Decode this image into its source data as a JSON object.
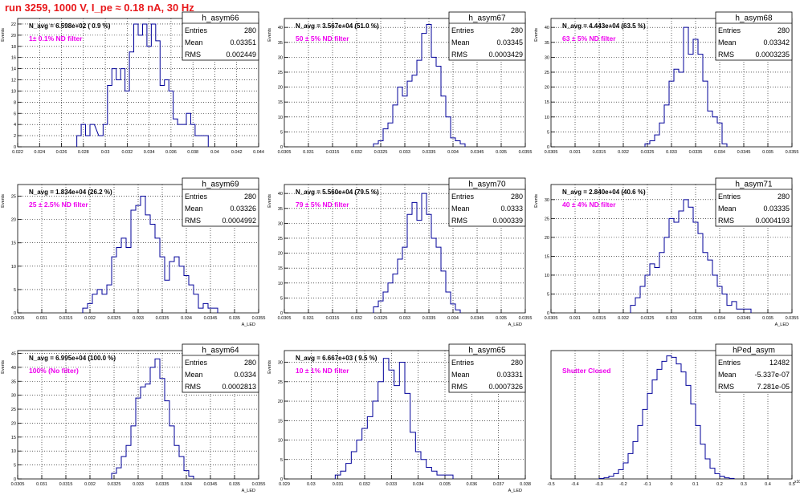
{
  "title": "run 3259,  1000 V, I_pe ≈ 0.18 nA,  30 Hz",
  "colors": {
    "title": "#e8191c",
    "filter_label": "#ee00ee",
    "histogram": "#000099",
    "grid": "#000000"
  },
  "chart_data": [
    {
      "type": "bar",
      "name": "h_asym66",
      "stats": {
        "entries": "280",
        "mean": "0.03351",
        "rms": "0.002449"
      },
      "navg": "N_avg = 6.598e+02 ( 0.9 %)",
      "filter": "1± 0.1% ND filter",
      "ylabel": "Events",
      "xlabel": "",
      "xlim": [
        0.022,
        0.044
      ],
      "ylim": [
        0,
        23
      ],
      "xticks": [
        "0.022",
        "0.024",
        "0.026",
        "0.028",
        "0.03",
        "0.032",
        "0.034",
        "0.036",
        "0.038",
        "0.04",
        "0.042",
        "0.044"
      ],
      "xtick_values": [
        0.022,
        0.024,
        0.026,
        0.028,
        0.03,
        0.032,
        0.034,
        0.036,
        0.038,
        0.04,
        0.042,
        0.044
      ],
      "yticks": [
        0,
        2,
        4,
        6,
        8,
        10,
        12,
        14,
        16,
        18,
        20,
        22
      ],
      "x": [
        0.0276,
        0.028,
        0.0284,
        0.0288,
        0.0296,
        0.03,
        0.0304,
        0.0308,
        0.0312,
        0.0316,
        0.032,
        0.0324,
        0.0328,
        0.0332,
        0.0336,
        0.034,
        0.0344,
        0.0348,
        0.0352,
        0.0356,
        0.036,
        0.0364,
        0.0368,
        0.0372,
        0.0376,
        0.038,
        0.0384,
        0.0388,
        0.0392
      ],
      "values": [
        2,
        4,
        2,
        4,
        2,
        4,
        11,
        14,
        12,
        14,
        10,
        17,
        22,
        20,
        22,
        18,
        22,
        19,
        11,
        12,
        10,
        5,
        4,
        4,
        6,
        4,
        2,
        2,
        2
      ]
    },
    {
      "type": "bar",
      "name": "h_asym67",
      "stats": {
        "entries": "280",
        "mean": "0.03345",
        "rms": "0.0003429"
      },
      "navg": "N_avg = 3.567e+04 (51.0 %)",
      "filter": "50 ± 5% ND filter",
      "ylabel": "Events",
      "xlabel": "",
      "xlim": [
        0.0305,
        0.0355
      ],
      "ylim": [
        0,
        43
      ],
      "xticks": [
        "0.0305",
        "0.031",
        "0.0315",
        "0.032",
        "0.0325",
        "0.033",
        "0.0335",
        "0.034",
        "0.0345",
        "0.035",
        "0.0355"
      ],
      "xtick_values": [
        0.0305,
        0.031,
        0.0315,
        0.032,
        0.0325,
        0.033,
        0.0335,
        0.034,
        0.0345,
        0.035,
        0.0355
      ],
      "yticks": [
        0,
        5,
        10,
        15,
        20,
        25,
        30,
        35,
        40
      ],
      "x": [
        0.0324,
        0.0325,
        0.0326,
        0.0327,
        0.0328,
        0.0329,
        0.033,
        0.0331,
        0.0332,
        0.0333,
        0.0334,
        0.0335,
        0.0336,
        0.0337,
        0.0338,
        0.0339,
        0.034,
        0.0341,
        0.0342
      ],
      "values": [
        1,
        2,
        6,
        8,
        14,
        20,
        17,
        22,
        24,
        29,
        38,
        41,
        30,
        27,
        17,
        10,
        3,
        2,
        1
      ]
    },
    {
      "type": "bar",
      "name": "h_asym68",
      "stats": {
        "entries": "280",
        "mean": "0.03342",
        "rms": "0.0003235"
      },
      "navg": "N_avg = 4.443e+04 (63.5 %)",
      "filter": "63 ± 5% ND filter",
      "ylabel": "Events",
      "xlabel": "",
      "xlim": [
        0.0305,
        0.0355
      ],
      "ylim": [
        0,
        43
      ],
      "xticks": [
        "0.0305",
        "0.031",
        "0.0315",
        "0.032",
        "0.0325",
        "0.033",
        "0.0335",
        "0.034",
        "0.0345",
        "0.035",
        "0.0355"
      ],
      "xtick_values": [
        0.0305,
        0.031,
        0.0315,
        0.032,
        0.0325,
        0.033,
        0.0335,
        0.034,
        0.0345,
        0.035,
        0.0355
      ],
      "yticks": [
        0,
        5,
        10,
        15,
        20,
        25,
        30,
        35,
        40
      ],
      "x": [
        0.0325,
        0.0326,
        0.0327,
        0.0328,
        0.0329,
        0.033,
        0.0331,
        0.0332,
        0.0333,
        0.0334,
        0.0335,
        0.0336,
        0.0337,
        0.0338,
        0.0339,
        0.034,
        0.0341
      ],
      "values": [
        1,
        2,
        4,
        8,
        14,
        22,
        26,
        25,
        40,
        31,
        36,
        31,
        22,
        12,
        10,
        8,
        1
      ]
    },
    {
      "type": "bar",
      "name": "h_asym69",
      "stats": {
        "entries": "280",
        "mean": "0.03326",
        "rms": "0.0004992"
      },
      "navg": "N_avg = 1.834e+04 (26.2 %)",
      "filter": "25 ± 2.5% ND filter",
      "ylabel": "Events",
      "xlabel": "A_LED",
      "xlim": [
        0.0305,
        0.0355
      ],
      "ylim": [
        0,
        27.5
      ],
      "xticks": [
        "0.0305",
        "0.031",
        "0.0315",
        "0.032",
        "0.0325",
        "0.033",
        "0.0335",
        "0.034",
        "0.0345",
        "0.035",
        "0.0355"
      ],
      "xtick_values": [
        0.0305,
        0.031,
        0.0315,
        0.032,
        0.0325,
        0.033,
        0.0335,
        0.034,
        0.0345,
        0.035,
        0.0355
      ],
      "yticks": [
        0,
        5,
        10,
        15,
        20,
        25
      ],
      "x": [
        0.0319,
        0.032,
        0.0321,
        0.0322,
        0.0323,
        0.0324,
        0.0325,
        0.0326,
        0.0327,
        0.0328,
        0.0329,
        0.033,
        0.0331,
        0.0332,
        0.0333,
        0.0334,
        0.0335,
        0.0336,
        0.0337,
        0.0338,
        0.0339,
        0.034,
        0.0341,
        0.0342,
        0.0343,
        0.0344,
        0.0345,
        0.0346
      ],
      "values": [
        1,
        2,
        4,
        5,
        4,
        6,
        12,
        14,
        16,
        14,
        22,
        23,
        25,
        21,
        19,
        16,
        12,
        7,
        11,
        12,
        10,
        8,
        6,
        4,
        1,
        2,
        1,
        1
      ]
    },
    {
      "type": "bar",
      "name": "h_asym70",
      "stats": {
        "entries": "280",
        "mean": "0.0333",
        "rms": "0.000339"
      },
      "navg": "N_avg = 5.560e+04 (79.5 %)",
      "filter": "79 ± 5% ND filter",
      "ylabel": "Events",
      "xlabel": "A_LED",
      "xlim": [
        0.0305,
        0.0355
      ],
      "ylim": [
        0,
        43
      ],
      "xticks": [
        "0.0305",
        "0.031",
        "0.0315",
        "0.032",
        "0.0325",
        "0.033",
        "0.0335",
        "0.034",
        "0.0345",
        "0.035",
        "0.0355"
      ],
      "xtick_values": [
        0.0305,
        0.031,
        0.0315,
        0.032,
        0.0325,
        0.033,
        0.0335,
        0.034,
        0.0345,
        0.035,
        0.0355
      ],
      "yticks": [
        0,
        5,
        10,
        15,
        20,
        25,
        30,
        35,
        40
      ],
      "x": [
        0.0324,
        0.0325,
        0.0326,
        0.0327,
        0.0328,
        0.0329,
        0.033,
        0.0331,
        0.0332,
        0.0333,
        0.0334,
        0.0335,
        0.0336,
        0.0337,
        0.0338,
        0.0339,
        0.034,
        0.0341
      ],
      "values": [
        2,
        4,
        7,
        10,
        13,
        18,
        22,
        33,
        37,
        31,
        40,
        33,
        25,
        22,
        14,
        7,
        3,
        1
      ]
    },
    {
      "type": "bar",
      "name": "h_asym71",
      "stats": {
        "entries": "280",
        "mean": "0.03335",
        "rms": "0.0004193"
      },
      "navg": "N_avg = 2.840e+04 (40.6 %)",
      "filter": "40 ± 4% ND filter",
      "ylabel": "Events",
      "xlabel": "A_LED",
      "xlim": [
        0.0305,
        0.0355
      ],
      "ylim": [
        0,
        34
      ],
      "xticks": [
        "0.0305",
        "0.031",
        "0.0315",
        "0.032",
        "0.0325",
        "0.033",
        "0.0335",
        "0.034",
        "0.0345",
        "0.035",
        "0.0355"
      ],
      "xtick_values": [
        0.0305,
        0.031,
        0.0315,
        0.032,
        0.0325,
        0.033,
        0.0335,
        0.034,
        0.0345,
        0.035,
        0.0355
      ],
      "yticks": [
        0,
        5,
        10,
        15,
        20,
        25,
        30
      ],
      "x": [
        0.0322,
        0.0323,
        0.0324,
        0.0325,
        0.0326,
        0.0327,
        0.0328,
        0.0329,
        0.033,
        0.0331,
        0.0332,
        0.0333,
        0.0334,
        0.0335,
        0.0336,
        0.0337,
        0.0338,
        0.0339,
        0.034,
        0.0341,
        0.0342,
        0.0343,
        0.0344,
        0.0345,
        0.0346
      ],
      "values": [
        2,
        4,
        7,
        10,
        13,
        12,
        16,
        20,
        25,
        24,
        27,
        30,
        28,
        24,
        21,
        16,
        14,
        10,
        7,
        5,
        2,
        3,
        1,
        1,
        1
      ]
    },
    {
      "type": "bar",
      "name": "h_asym64",
      "stats": {
        "entries": "280",
        "mean": "0.0334",
        "rms": "0.0002813"
      },
      "navg": "N_avg = 6.995e+04 (100.0 %)",
      "filter": "100% (No filter)",
      "ylabel": "Events",
      "xlabel": "A_LED",
      "xlim": [
        0.0305,
        0.0355
      ],
      "ylim": [
        0,
        46
      ],
      "xticks": [
        "0.0305",
        "0.031",
        "0.0315",
        "0.032",
        "0.0325",
        "0.033",
        "0.0335",
        "0.034",
        "0.0345",
        "0.035",
        "0.0355"
      ],
      "xtick_values": [
        0.0305,
        0.031,
        0.0315,
        0.032,
        0.0325,
        0.033,
        0.0335,
        0.034,
        0.0345,
        0.035,
        0.0355
      ],
      "yticks": [
        0,
        5,
        10,
        15,
        20,
        25,
        30,
        35,
        40,
        45
      ],
      "x": [
        0.0325,
        0.0326,
        0.0327,
        0.0328,
        0.0329,
        0.033,
        0.0331,
        0.0332,
        0.0333,
        0.0334,
        0.0335,
        0.0336,
        0.0337,
        0.0338,
        0.0339,
        0.034,
        0.0341
      ],
      "values": [
        2,
        4,
        8,
        12,
        19,
        29,
        33,
        34,
        40,
        43,
        36,
        28,
        19,
        12,
        8,
        3,
        1
      ]
    },
    {
      "type": "bar",
      "name": "h_asym65",
      "stats": {
        "entries": "280",
        "mean": "0.03331",
        "rms": "0.0007326"
      },
      "navg": "N_avg = 6.667e+03 ( 9.5 %)",
      "filter": "10 ± 1% ND filter",
      "ylabel": "Events",
      "xlabel": "A_LED",
      "xlim": [
        0.029,
        0.038
      ],
      "ylim": [
        0,
        33
      ],
      "xticks": [
        "0.029",
        "0.03",
        "0.031",
        "0.032",
        "0.033",
        "0.034",
        "0.035",
        "0.036",
        "0.037",
        "0.038"
      ],
      "xtick_values": [
        0.029,
        0.03,
        0.031,
        0.032,
        0.033,
        0.034,
        0.035,
        0.036,
        0.037,
        0.038
      ],
      "yticks": [
        0,
        5,
        10,
        15,
        20,
        25,
        30
      ],
      "x": [
        0.031,
        0.0312,
        0.0314,
        0.0316,
        0.0318,
        0.032,
        0.0322,
        0.0324,
        0.0326,
        0.0328,
        0.033,
        0.0332,
        0.0334,
        0.0336,
        0.0338,
        0.034,
        0.0342,
        0.0344,
        0.0346,
        0.0348,
        0.035,
        0.0352
      ],
      "values": [
        1,
        2,
        4,
        7,
        10,
        13,
        16,
        20,
        25,
        31,
        28,
        24,
        30,
        22,
        12,
        7,
        5,
        3,
        2,
        1,
        1,
        1
      ]
    },
    {
      "type": "bar",
      "name": "hPed_asym",
      "stats": {
        "entries": "12482",
        "mean": "-5.337e-07",
        "rms": "7.281e-05"
      },
      "navg": "",
      "filter": "Shutter Closed",
      "ylabel": "",
      "xlabel": "",
      "xlim": [
        -0.5,
        0.5
      ],
      "ylim": [
        0,
        480
      ],
      "exponent": "x10⁻³",
      "xticks": [
        "-0.5",
        "-0.4",
        "-0.3",
        "-0.2",
        "-0.1",
        "0",
        "0.1",
        "0.2",
        "0.3",
        "0.4",
        "0.5"
      ],
      "xtick_values": [
        -0.5,
        -0.4,
        -0.3,
        -0.2,
        -0.1,
        0,
        0.1,
        0.2,
        0.3,
        0.4,
        0.5
      ],
      "yticks": [],
      "x": [
        -0.29,
        -0.27,
        -0.25,
        -0.23,
        -0.21,
        -0.19,
        -0.17,
        -0.15,
        -0.13,
        -0.11,
        -0.09,
        -0.07,
        -0.05,
        -0.03,
        -0.01,
        0.01,
        0.03,
        0.05,
        0.07,
        0.09,
        0.11,
        0.13,
        0.15,
        0.17,
        0.19,
        0.21,
        0.23,
        0.25
      ],
      "values": [
        2,
        5,
        10,
        20,
        35,
        60,
        95,
        140,
        200,
        260,
        320,
        370,
        410,
        440,
        460,
        455,
        430,
        400,
        350,
        280,
        200,
        130,
        75,
        40,
        20,
        10,
        4,
        2
      ]
    }
  ]
}
